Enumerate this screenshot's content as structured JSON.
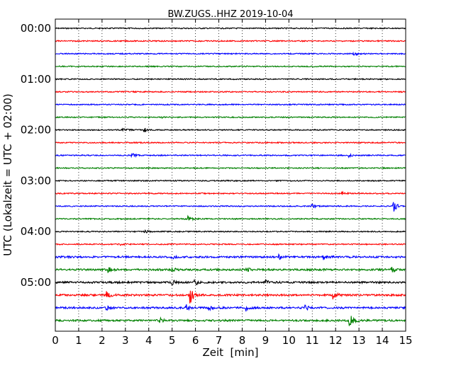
{
  "chart_data": {
    "type": "line",
    "title": "BW.ZUGS..HHZ 2019-10-04",
    "xlabel": "Zeit  [min]",
    "ylabel": "UTC (Lokalzeit = UTC + 02:00)",
    "xlim": [
      0,
      15
    ],
    "x_ticks": [
      "0",
      "1",
      "2",
      "3",
      "4",
      "5",
      "6",
      "7",
      "8",
      "9",
      "10",
      "11",
      "12",
      "13",
      "14",
      "15"
    ],
    "y_tick_labels": [
      "00:00",
      "01:00",
      "02:00",
      "03:00",
      "04:00",
      "05:00"
    ],
    "grid": "vertical dotted",
    "trace_interval_min": 15,
    "colors": [
      "#000000",
      "#ff0000",
      "#0000ff",
      "#008000"
    ],
    "traces": [
      {
        "start": "00:00",
        "color": "#000000",
        "events": []
      },
      {
        "start": "00:15",
        "color": "#ff0000",
        "events": []
      },
      {
        "start": "00:30",
        "color": "#0000ff",
        "events": [
          {
            "t": 12.8,
            "amp": 0.25
          }
        ]
      },
      {
        "start": "00:45",
        "color": "#008000",
        "events": []
      },
      {
        "start": "01:00",
        "color": "#000000",
        "events": []
      },
      {
        "start": "01:15",
        "color": "#ff0000",
        "events": []
      },
      {
        "start": "01:30",
        "color": "#0000ff",
        "events": []
      },
      {
        "start": "01:45",
        "color": "#008000",
        "events": [
          {
            "t": 4.6,
            "amp": 0.2
          }
        ]
      },
      {
        "start": "02:00",
        "color": "#000000",
        "events": [
          {
            "t": 2.9,
            "amp": 0.3
          },
          {
            "t": 3.8,
            "amp": 0.35
          }
        ]
      },
      {
        "start": "02:15",
        "color": "#ff0000",
        "events": []
      },
      {
        "start": "02:30",
        "color": "#0000ff",
        "events": [
          {
            "t": 3.3,
            "amp": 0.25
          },
          {
            "t": 12.6,
            "amp": 0.2
          }
        ]
      },
      {
        "start": "02:45",
        "color": "#008000",
        "events": []
      },
      {
        "start": "03:00",
        "color": "#000000",
        "events": []
      },
      {
        "start": "03:15",
        "color": "#ff0000",
        "events": [
          {
            "t": 12.3,
            "amp": 0.2
          }
        ]
      },
      {
        "start": "03:30",
        "color": "#0000ff",
        "events": [
          {
            "t": 11.0,
            "amp": 0.25
          },
          {
            "t": 14.5,
            "amp": 0.7
          }
        ]
      },
      {
        "start": "03:45",
        "color": "#008000",
        "events": [
          {
            "t": 5.7,
            "amp": 0.4
          }
        ]
      },
      {
        "start": "04:00",
        "color": "#000000",
        "events": [
          {
            "t": 3.8,
            "amp": 0.3
          }
        ]
      },
      {
        "start": "04:15",
        "color": "#ff0000",
        "events": [
          {
            "t": 2.7,
            "amp": 0.2
          }
        ]
      },
      {
        "start": "04:30",
        "color": "#0000ff",
        "events": [
          {
            "t": 5.0,
            "amp": 0.3
          },
          {
            "t": 9.6,
            "amp": 0.3
          },
          {
            "t": 11.5,
            "amp": 0.3
          }
        ]
      },
      {
        "start": "04:45",
        "color": "#008000",
        "events": [
          {
            "t": 2.3,
            "amp": 0.3
          },
          {
            "t": 5.0,
            "amp": 0.3
          },
          {
            "t": 8.2,
            "amp": 0.3
          },
          {
            "t": 14.4,
            "amp": 0.4
          }
        ]
      },
      {
        "start": "05:00",
        "color": "#000000",
        "events": [
          {
            "t": 5.0,
            "amp": 0.35
          },
          {
            "t": 6.0,
            "amp": 0.35
          },
          {
            "t": 9.0,
            "amp": 0.3
          }
        ]
      },
      {
        "start": "05:15",
        "color": "#ff0000",
        "events": [
          {
            "t": 2.2,
            "amp": 0.5
          },
          {
            "t": 5.8,
            "amp": 1.1
          },
          {
            "t": 11.9,
            "amp": 0.6
          }
        ]
      },
      {
        "start": "05:30",
        "color": "#0000ff",
        "events": [
          {
            "t": 2.2,
            "amp": 0.35
          },
          {
            "t": 5.6,
            "amp": 0.4
          },
          {
            "t": 6.6,
            "amp": 0.4
          },
          {
            "t": 8.2,
            "amp": 0.4
          },
          {
            "t": 10.7,
            "amp": 0.4
          }
        ]
      },
      {
        "start": "05:45",
        "color": "#008000",
        "events": [
          {
            "t": 4.5,
            "amp": 0.3
          },
          {
            "t": 12.6,
            "amp": 1.0
          }
        ]
      }
    ]
  }
}
